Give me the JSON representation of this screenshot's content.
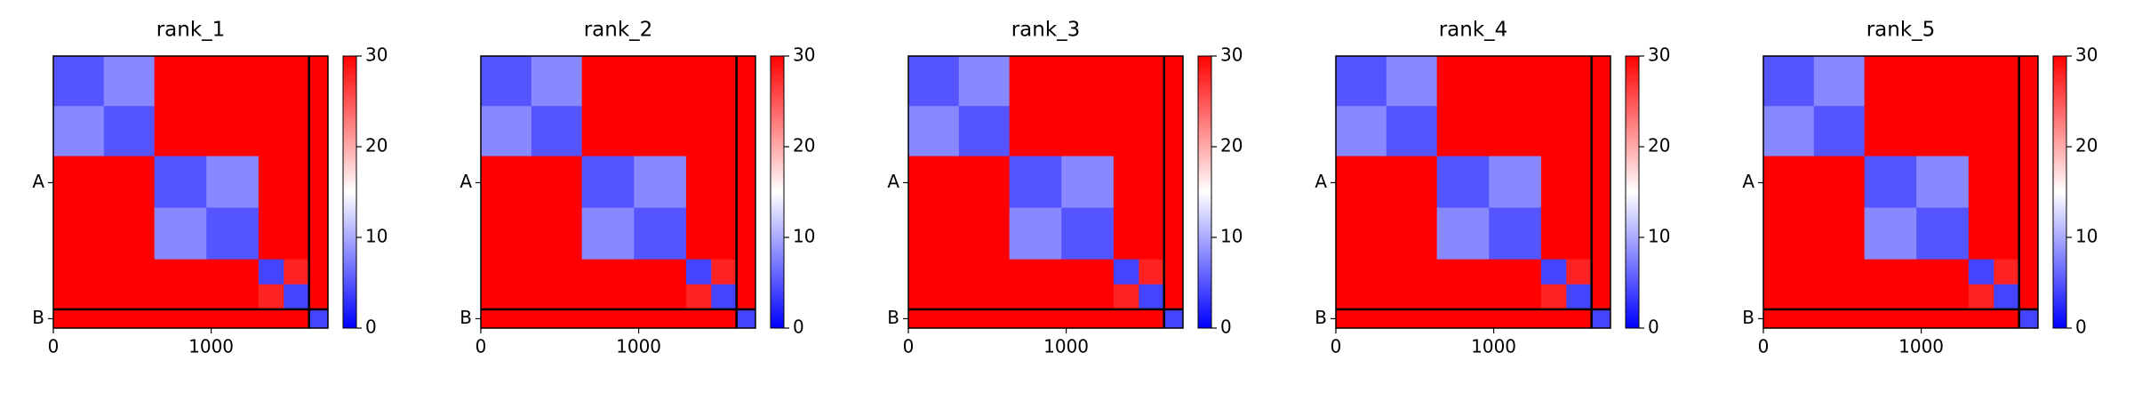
{
  "chart_data": [
    {
      "type": "heatmap",
      "title": "rank_1",
      "bins": [
        0,
        320,
        640,
        970,
        1300,
        1460,
        1620,
        1740
      ],
      "values": [
        [
          5,
          8,
          30,
          30,
          30,
          30,
          30
        ],
        [
          8,
          5,
          30,
          30,
          30,
          30,
          30
        ],
        [
          30,
          30,
          5,
          8,
          30,
          30,
          30
        ],
        [
          30,
          30,
          8,
          5,
          30,
          30,
          30
        ],
        [
          30,
          30,
          30,
          30,
          4,
          28,
          30
        ],
        [
          30,
          30,
          30,
          30,
          28,
          4,
          30
        ],
        [
          30,
          30,
          30,
          30,
          30,
          30,
          4
        ]
      ],
      "xlim": [
        0,
        1740
      ],
      "ylim": [
        0,
        1740
      ],
      "xticks": [
        0,
        1000
      ],
      "yticks": [
        {
          "value": 810,
          "label": "A"
        },
        {
          "value": 1680,
          "label": "B"
        }
      ],
      "clim": [
        0,
        30
      ],
      "cticks": [
        0,
        10,
        20,
        30
      ],
      "cmap": [
        "#0000ff",
        "#ffffff",
        "#ff0000"
      ],
      "chain_breaks": [
        1620
      ]
    },
    {
      "type": "heatmap",
      "title": "rank_2",
      "bins": [
        0,
        320,
        640,
        970,
        1300,
        1460,
        1620,
        1740
      ],
      "values": [
        [
          5,
          8,
          30,
          30,
          30,
          30,
          30
        ],
        [
          8,
          5,
          30,
          30,
          30,
          30,
          30
        ],
        [
          30,
          30,
          5,
          8,
          30,
          30,
          30
        ],
        [
          30,
          30,
          8,
          5,
          30,
          30,
          30
        ],
        [
          30,
          30,
          30,
          30,
          4,
          28,
          30
        ],
        [
          30,
          30,
          30,
          30,
          28,
          4,
          30
        ],
        [
          30,
          30,
          30,
          30,
          30,
          30,
          4
        ]
      ],
      "xlim": [
        0,
        1740
      ],
      "ylim": [
        0,
        1740
      ],
      "xticks": [
        0,
        1000
      ],
      "yticks": [
        {
          "value": 810,
          "label": "A"
        },
        {
          "value": 1680,
          "label": "B"
        }
      ],
      "clim": [
        0,
        30
      ],
      "cticks": [
        0,
        10,
        20,
        30
      ],
      "cmap": [
        "#0000ff",
        "#ffffff",
        "#ff0000"
      ],
      "chain_breaks": [
        1620
      ]
    },
    {
      "type": "heatmap",
      "title": "rank_3",
      "bins": [
        0,
        320,
        640,
        970,
        1300,
        1460,
        1620,
        1740
      ],
      "values": [
        [
          5,
          8,
          30,
          30,
          30,
          30,
          30
        ],
        [
          8,
          5,
          30,
          30,
          30,
          30,
          30
        ],
        [
          30,
          30,
          5,
          8,
          30,
          30,
          30
        ],
        [
          30,
          30,
          8,
          5,
          30,
          30,
          30
        ],
        [
          30,
          30,
          30,
          30,
          4,
          28,
          30
        ],
        [
          30,
          30,
          30,
          30,
          28,
          4,
          30
        ],
        [
          30,
          30,
          30,
          30,
          30,
          30,
          4
        ]
      ],
      "xlim": [
        0,
        1740
      ],
      "ylim": [
        0,
        1740
      ],
      "xticks": [
        0,
        1000
      ],
      "yticks": [
        {
          "value": 810,
          "label": "A"
        },
        {
          "value": 1680,
          "label": "B"
        }
      ],
      "clim": [
        0,
        30
      ],
      "cticks": [
        0,
        10,
        20,
        30
      ],
      "cmap": [
        "#0000ff",
        "#ffffff",
        "#ff0000"
      ],
      "chain_breaks": [
        1620
      ]
    },
    {
      "type": "heatmap",
      "title": "rank_4",
      "bins": [
        0,
        320,
        640,
        970,
        1300,
        1460,
        1620,
        1740
      ],
      "values": [
        [
          5,
          8,
          30,
          30,
          30,
          30,
          30
        ],
        [
          8,
          5,
          30,
          30,
          30,
          30,
          30
        ],
        [
          30,
          30,
          5,
          8,
          30,
          30,
          30
        ],
        [
          30,
          30,
          8,
          5,
          30,
          30,
          30
        ],
        [
          30,
          30,
          30,
          30,
          4,
          28,
          30
        ],
        [
          30,
          30,
          30,
          30,
          28,
          4,
          30
        ],
        [
          30,
          30,
          30,
          30,
          30,
          30,
          4
        ]
      ],
      "xlim": [
        0,
        1740
      ],
      "ylim": [
        0,
        1740
      ],
      "xticks": [
        0,
        1000
      ],
      "yticks": [
        {
          "value": 810,
          "label": "A"
        },
        {
          "value": 1680,
          "label": "B"
        }
      ],
      "clim": [
        0,
        30
      ],
      "cticks": [
        0,
        10,
        20,
        30
      ],
      "cmap": [
        "#0000ff",
        "#ffffff",
        "#ff0000"
      ],
      "chain_breaks": [
        1620
      ]
    },
    {
      "type": "heatmap",
      "title": "rank_5",
      "bins": [
        0,
        320,
        640,
        970,
        1300,
        1460,
        1620,
        1740
      ],
      "values": [
        [
          5,
          8,
          30,
          30,
          30,
          30,
          30
        ],
        [
          8,
          5,
          30,
          30,
          30,
          30,
          30
        ],
        [
          30,
          30,
          5,
          8,
          30,
          30,
          30
        ],
        [
          30,
          30,
          8,
          5,
          30,
          30,
          30
        ],
        [
          30,
          30,
          30,
          30,
          4,
          28,
          30
        ],
        [
          30,
          30,
          30,
          30,
          28,
          4,
          30
        ],
        [
          30,
          30,
          30,
          30,
          30,
          30,
          4
        ]
      ],
      "xlim": [
        0,
        1740
      ],
      "ylim": [
        0,
        1740
      ],
      "xticks": [
        0,
        1000
      ],
      "yticks": [
        {
          "value": 810,
          "label": "A"
        },
        {
          "value": 1680,
          "label": "B"
        }
      ],
      "clim": [
        0,
        30
      ],
      "cticks": [
        0,
        10,
        20,
        30
      ],
      "cmap": [
        "#0000ff",
        "#ffffff",
        "#ff0000"
      ],
      "chain_breaks": [
        1620
      ]
    }
  ]
}
